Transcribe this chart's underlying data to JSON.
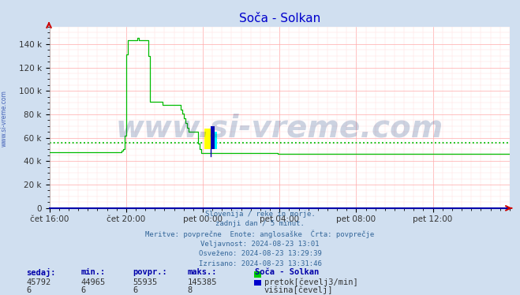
{
  "title": "Soča - Solkan",
  "title_color": "#0000cc",
  "bg_color": "#d0dff0",
  "plot_bg_color": "#ffffff",
  "grid_color_major": "#ffaaaa",
  "grid_color_minor": "#ffdddd",
  "line_color_flow": "#00bb00",
  "avg_line_color": "#00bb00",
  "flow_avg": 55935,
  "ylim": [
    0,
    155000
  ],
  "yticks": [
    0,
    20000,
    40000,
    60000,
    80000,
    100000,
    120000,
    140000
  ],
  "ytick_labels": [
    "0",
    "20 k",
    "40 k",
    "60 k",
    "80 k",
    "100 k",
    "120 k",
    "140 k"
  ],
  "xlabel_times": [
    "čet 16:00",
    "čet 20:00",
    "pet 00:00",
    "pet 04:00",
    "pet 08:00",
    "pet 12:00"
  ],
  "xtick_positions": [
    0,
    48,
    96,
    144,
    192,
    240
  ],
  "watermark": "www.si-vreme.com",
  "watermark_color": "#1a3a7a",
  "legend_station": "Soča - Solkan",
  "legend_flow_label": "pretok[čevelj3/min]",
  "legend_height_label": "višina[čevelj]",
  "legend_flow_color": "#00cc00",
  "legend_height_color": "#0000cc",
  "table_headers": [
    "sedaj:",
    "min.:",
    "povpr.:",
    "maks.:"
  ],
  "table_flow_values": [
    "45792",
    "44965",
    "55935",
    "145385"
  ],
  "table_height_values": [
    "6",
    "6",
    "6",
    "8"
  ],
  "sidebar_text": "www.si-vreme.com",
  "sidebar_color": "#2244aa",
  "subtitle_lines": [
    "Slovenija / reke in morje.",
    "zadnji dan / 5 minut.",
    "Meritve: povprečne  Enote: anglosaške  Črta: povprečje",
    "Veljavnost: 2024-08-23 13:01",
    "Osveženo: 2024-08-23 13:29:39",
    "Izrisano: 2024-08-23 13:31:46"
  ]
}
